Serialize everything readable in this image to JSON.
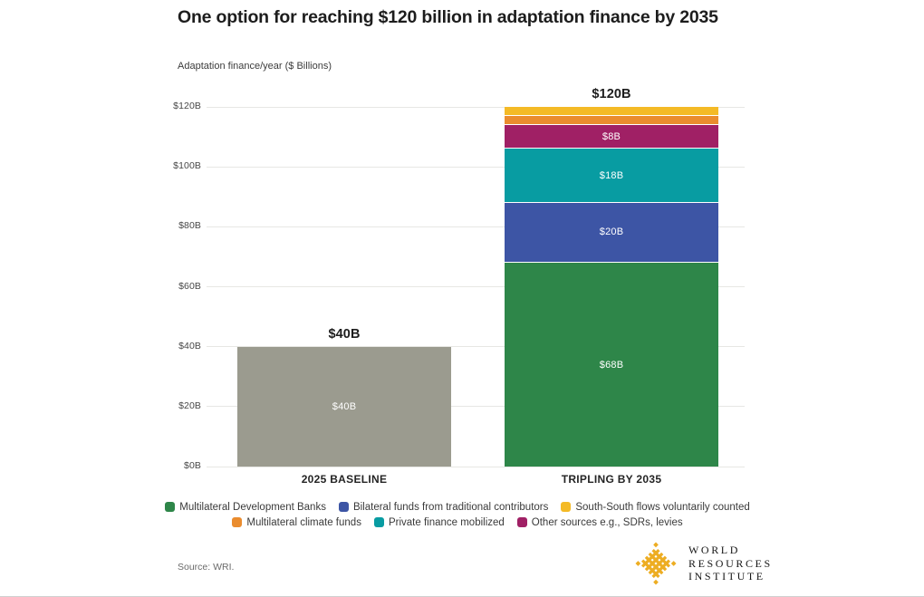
{
  "title": "One option for reaching $120 billion in adaptation finance by 2035",
  "unit_label": "Adaptation finance/year ($ Billions)",
  "source": "Source: WRI.",
  "logo": {
    "icon": "wri-weave-diamond",
    "color": "#EDAD22",
    "org_lines": [
      "WORLD",
      "RESOURCES",
      "INSTITUTE"
    ]
  },
  "chart_data": {
    "type": "bar",
    "stacked": true,
    "title": "One option for reaching $120 billion in adaptation finance by 2035",
    "ylabel": "Adaptation finance/year ($ Billions)",
    "xlabel": "",
    "ylim": [
      0,
      120
    ],
    "ytick_step": 20,
    "yticks": [
      {
        "value": 0,
        "label": "$0B"
      },
      {
        "value": 20,
        "label": "$20B"
      },
      {
        "value": 40,
        "label": "$40B"
      },
      {
        "value": 60,
        "label": "$60B"
      },
      {
        "value": 80,
        "label": "$80B"
      },
      {
        "value": 100,
        "label": "$100B"
      },
      {
        "value": 120,
        "label": "$120B"
      }
    ],
    "grid": true,
    "gridline_color": "#e7e7e4",
    "categories": [
      "2025 BASELINE",
      "TRIPLING BY 2035"
    ],
    "bars": [
      {
        "category": "2025 BASELINE",
        "total": 40,
        "total_label": "$40B",
        "segments": [
          {
            "name": "2025 baseline adaptation finance",
            "value": 40,
            "label": "$40B",
            "color": "#9B9B8F"
          }
        ]
      },
      {
        "category": "TRIPLING BY 2035",
        "total": 120,
        "total_label": "$120B",
        "segments": [
          {
            "name": "Multilateral Development Banks",
            "value": 68,
            "label": "$68B",
            "color": "#2E8649"
          },
          {
            "name": "Bilateral funds from traditional contributors",
            "value": 20,
            "label": "$20B",
            "color": "#3D55A5"
          },
          {
            "name": "Private finance mobilized",
            "value": 18,
            "label": "$18B",
            "color": "#089CA2"
          },
          {
            "name": "Other sources e.g., SDRs, levies",
            "value": 8,
            "label": "$8B",
            "color": "#A02065"
          },
          {
            "name": "Multilateral climate funds",
            "value": 3,
            "label": "",
            "color": "#EA8C2E"
          },
          {
            "name": "South-South flows voluntarily counted",
            "value": 3,
            "label": "",
            "color": "#F4BA26"
          }
        ]
      }
    ],
    "legend": {
      "position": "bottom",
      "rows": [
        [
          {
            "label": "Multilateral Development Banks",
            "color": "#2E8649"
          },
          {
            "label": "Bilateral funds from traditional contributors",
            "color": "#3D55A5"
          },
          {
            "label": "South-South flows voluntarily counted",
            "color": "#F4BA26"
          }
        ],
        [
          {
            "label": "Multilateral climate funds",
            "color": "#EA8C2E"
          },
          {
            "label": "Private finance mobilized",
            "color": "#089CA2"
          },
          {
            "label": "Other sources e.g., SDRs, levies",
            "color": "#A02065"
          }
        ]
      ]
    }
  }
}
